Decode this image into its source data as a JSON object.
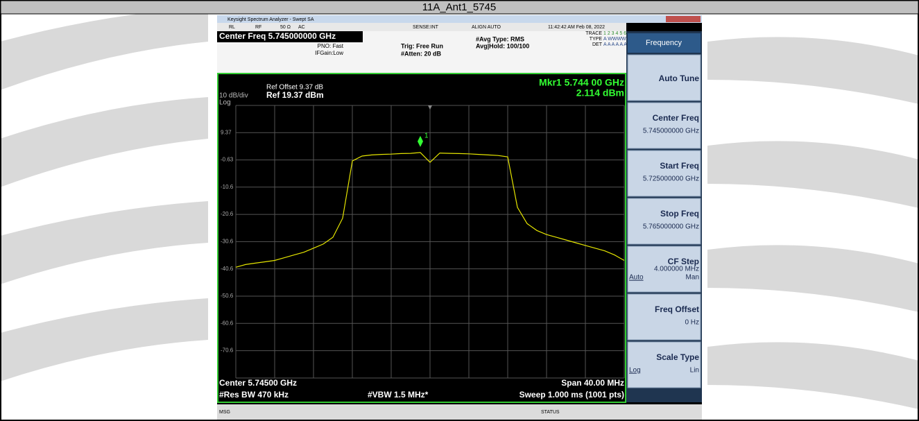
{
  "header": {
    "title": "11A_Ant1_5745"
  },
  "window": {
    "title": "Keysight Spectrum Analyzer - Swept SA"
  },
  "status_row": [
    "RL",
    "RF",
    "50 Ω",
    "AC",
    "SENSE:INT",
    "ALIGN AUTO",
    "11:42:42 AM Feb 08, 2022"
  ],
  "settings": {
    "center_freq": "Center Freq 5.745000000 GHz",
    "pno": "PNO: Fast",
    "ifgain": "IFGain:Low",
    "trig": "Trig: Free Run",
    "atten": "#Atten: 20 dB",
    "avg_type": "#Avg Type: RMS",
    "avg_hold": "Avg|Hold: 100/100",
    "trace_label": "TRACE",
    "trace_nums": "1 2 3 4 5 6",
    "type_label": "TYPE",
    "type_val": "A WWWWW",
    "det_label": "DET",
    "det_val": "A A A A A A"
  },
  "display": {
    "ref_offset": "Ref Offset 9.37 dB",
    "scale": "10 dB/div",
    "ref": "Ref 19.37 dBm",
    "log": "Log",
    "marker_freq": "Mkr1 5.744 00 GHz",
    "marker_amp": "2.114 dBm",
    "marker_id": "1"
  },
  "chart_data": {
    "type": "line",
    "ylim": [
      -80.63,
      19.37
    ],
    "yticks": [
      9.37,
      -0.63,
      -10.6,
      -20.6,
      -30.6,
      -40.6,
      -50.6,
      -60.6,
      -70.6
    ],
    "grid": true,
    "series": [
      {
        "color": "#e6e600",
        "values": [
          -40,
          -39,
          -38.5,
          -38,
          -37.5,
          -36.5,
          -35.5,
          -34.5,
          -33,
          -31.5,
          -29,
          -22,
          -1,
          0.8,
          1.2,
          1.4,
          1.5,
          1.7,
          1.8,
          2.1,
          -1.5,
          1.9,
          1.8,
          1.7,
          1.6,
          1.4,
          1.2,
          1.0,
          0.5,
          -18,
          -24,
          -26.5,
          -28,
          -29,
          -30,
          -31,
          -32,
          -33,
          -34,
          -35.5,
          -37.5
        ]
      }
    ]
  },
  "footer": {
    "center": "Center 5.74500 GHz",
    "rbw": "#Res BW 470 kHz",
    "vbw": "#VBW 1.5 MHz*",
    "span": "Span 40.00 MHz",
    "sweep": "Sweep 1.000 ms (1001 pts)"
  },
  "menu": {
    "title": "Frequency",
    "buttons": [
      {
        "label": "Auto Tune"
      },
      {
        "label": "Center Freq",
        "value": "5.745000000 GHz"
      },
      {
        "label": "Start Freq",
        "value": "5.725000000 GHz"
      },
      {
        "label": "Stop Freq",
        "value": "5.765000000 GHz"
      },
      {
        "label": "CF Step",
        "value": "4.000000 MHz",
        "left": "Auto",
        "right": "Man"
      },
      {
        "label": "Freq Offset",
        "value": "0 Hz"
      },
      {
        "label": "Scale Type",
        "left": "Log",
        "right": "Lin"
      }
    ]
  },
  "statusbar": {
    "msg": "MSG",
    "status": "STATUS"
  }
}
